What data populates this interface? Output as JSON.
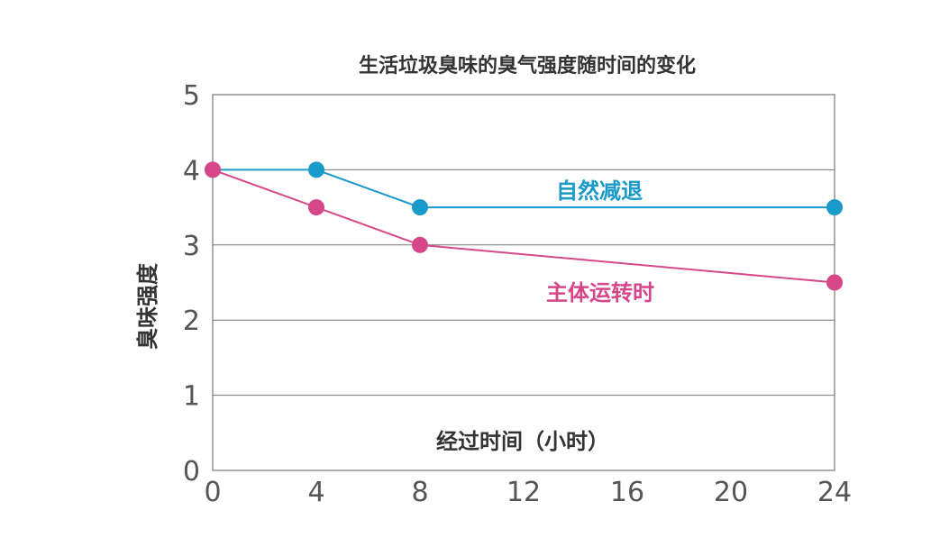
{
  "chart_data": {
    "type": "line",
    "title": "生活垃圾臭味的臭气强度随时间的变化",
    "xlabel": "经过时间（小时）",
    "ylabel": "臭味强度",
    "xlim": [
      0,
      24
    ],
    "ylim": [
      0,
      5
    ],
    "x_ticks": [
      "0",
      "4",
      "8",
      "12",
      "16",
      "20",
      "24"
    ],
    "y_ticks": [
      "0",
      "1",
      "2",
      "3",
      "4",
      "5"
    ],
    "grid": true,
    "series": [
      {
        "name": "自然减退",
        "color": "#1a9ac9",
        "x": [
          0,
          4,
          8,
          24
        ],
        "y": [
          4,
          4,
          3.5,
          3.5
        ]
      },
      {
        "name": "主体运转时",
        "color": "#d6478a",
        "x": [
          0,
          4,
          8,
          24
        ],
        "y": [
          4,
          3.5,
          3,
          2.5
        ]
      }
    ]
  }
}
